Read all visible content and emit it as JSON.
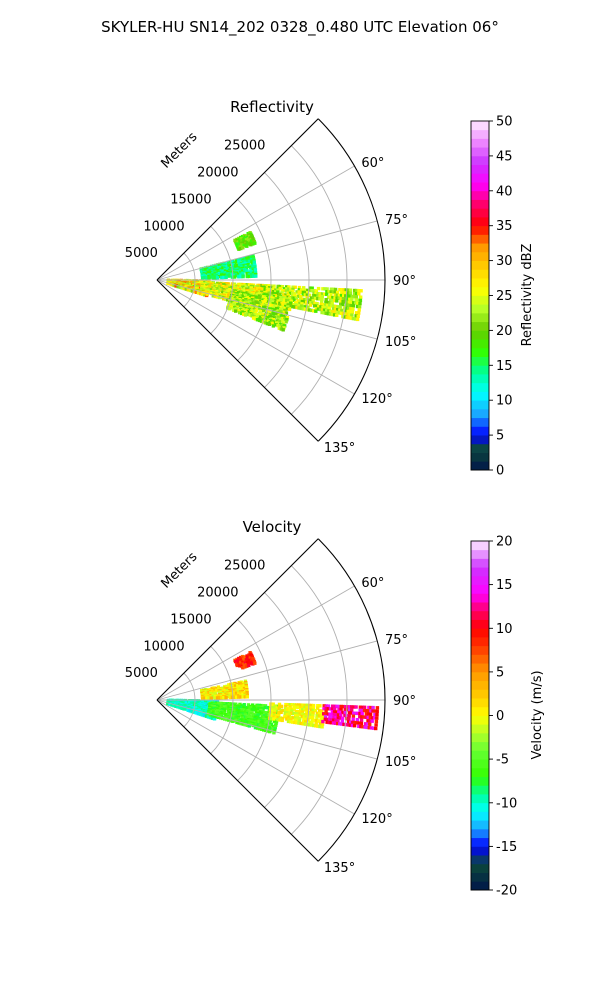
{
  "figure_title": "SKYLER-HU  SN14_202  0328_0.480 UTC Elevation 06°",
  "colors": {
    "grid": "#b0b0b0",
    "reflectivity_stops": [
      [
        0,
        "#00154a"
      ],
      [
        3,
        "#0c4a3a"
      ],
      [
        5,
        "#0000ff"
      ],
      [
        8,
        "#1aa5ff"
      ],
      [
        11,
        "#00ffff"
      ],
      [
        14,
        "#00ff99"
      ],
      [
        17,
        "#33ff00"
      ],
      [
        20,
        "#66cc00"
      ],
      [
        23,
        "#b4ff28"
      ],
      [
        26,
        "#ffff00"
      ],
      [
        29,
        "#ffd000"
      ],
      [
        32,
        "#ff9900"
      ],
      [
        35,
        "#ff0000"
      ],
      [
        38,
        "#ff0066"
      ],
      [
        41,
        "#ff00ff"
      ],
      [
        44,
        "#cc33ff"
      ],
      [
        47,
        "#ee88ff"
      ],
      [
        50,
        "#ffeeff"
      ]
    ],
    "velocity_stops": [
      [
        -20,
        "#00154a"
      ],
      [
        -17,
        "#0c4a3a"
      ],
      [
        -15,
        "#0000ff"
      ],
      [
        -13,
        "#1aa5ff"
      ],
      [
        -11,
        "#00ffff"
      ],
      [
        -9,
        "#00ff99"
      ],
      [
        -7,
        "#33ff00"
      ],
      [
        -4,
        "#66ff33"
      ],
      [
        -2,
        "#b4ff28"
      ],
      [
        0,
        "#ffff00"
      ],
      [
        2,
        "#ffd000"
      ],
      [
        5,
        "#ff9900"
      ],
      [
        8,
        "#ff3300"
      ],
      [
        10,
        "#ff0000"
      ],
      [
        12,
        "#ff0066"
      ],
      [
        14,
        "#ff00ff"
      ],
      [
        17,
        "#cc33ff"
      ],
      [
        20,
        "#ffeeff"
      ]
    ]
  },
  "chart_data": [
    {
      "type": "heatmap",
      "projection": "polar-sector",
      "title": "Reflectivity",
      "radial_label": "Meters",
      "theta_range_deg": [
        45,
        135
      ],
      "theta_ticks": [
        "60°",
        "75°",
        "90°",
        "105°",
        "120°",
        "135°"
      ],
      "theta_tick_values": [
        60,
        75,
        90,
        105,
        120,
        135
      ],
      "radial_range_m": [
        0,
        30000
      ],
      "radial_ticks": [
        "5000",
        "10000",
        "15000",
        "20000",
        "25000"
      ],
      "radial_tick_values": [
        5000,
        10000,
        15000,
        20000,
        25000
      ],
      "grid": true,
      "colorbar": {
        "label": "Reflectivity dBZ",
        "range": [
          0,
          50
        ],
        "ticks": [
          "0",
          "5",
          "10",
          "15",
          "20",
          "25",
          "30",
          "35",
          "40",
          "45",
          "50"
        ],
        "tick_values": [
          0,
          5,
          10,
          15,
          20,
          25,
          30,
          35,
          40,
          45,
          50
        ]
      },
      "echo_regions": [
        {
          "az": [
            91,
            108
          ],
          "range_m": [
            1500,
            7000
          ],
          "value": [
            20,
            34
          ]
        },
        {
          "az": [
            93,
            106
          ],
          "range_m": [
            6000,
            15000
          ],
          "value": [
            20,
            30
          ]
        },
        {
          "az": [
            93,
            102
          ],
          "range_m": [
            14000,
            27000
          ],
          "value": [
            18,
            28
          ]
        },
        {
          "az": [
            98,
            112
          ],
          "range_m": [
            10000,
            18000
          ],
          "value": [
            18,
            27
          ]
        },
        {
          "az": [
            76,
            88
          ],
          "range_m": [
            6000,
            13000
          ],
          "value": [
            12,
            18
          ]
        },
        {
          "az": [
            63,
            70
          ],
          "range_m": [
            11500,
            14000
          ],
          "value": [
            16,
            22
          ]
        }
      ]
    },
    {
      "type": "heatmap",
      "projection": "polar-sector",
      "title": "Velocity",
      "radial_label": "Meters",
      "theta_range_deg": [
        45,
        135
      ],
      "theta_ticks": [
        "60°",
        "75°",
        "90°",
        "105°",
        "120°",
        "135°"
      ],
      "theta_tick_values": [
        60,
        75,
        90,
        105,
        120,
        135
      ],
      "radial_range_m": [
        0,
        30000
      ],
      "radial_ticks": [
        "5000",
        "10000",
        "15000",
        "20000",
        "25000"
      ],
      "radial_tick_values": [
        5000,
        10000,
        15000,
        20000,
        25000
      ],
      "grid": true,
      "colorbar": {
        "label": "Velocity (m/s)",
        "range": [
          -20,
          20
        ],
        "ticks": [
          "-20",
          "-15",
          "-10",
          "-5",
          "0",
          "5",
          "10",
          "15",
          "20"
        ],
        "tick_values": [
          -20,
          -15,
          -10,
          -5,
          0,
          5,
          10,
          15,
          20
        ]
      },
      "echo_regions": [
        {
          "az": [
            91,
            109
          ],
          "range_m": [
            1500,
            8000
          ],
          "value": [
            -12,
            -8
          ]
        },
        {
          "az": [
            93,
            106
          ],
          "range_m": [
            7000,
            16000
          ],
          "value": [
            -8,
            -4
          ]
        },
        {
          "az": [
            92,
            100
          ],
          "range_m": [
            15000,
            22000
          ],
          "value": [
            -2,
            2
          ]
        },
        {
          "az": [
            92,
            98
          ],
          "range_m": [
            22000,
            29000
          ],
          "value": [
            8,
            16
          ]
        },
        {
          "az": [
            78,
            88
          ],
          "range_m": [
            6000,
            12000
          ],
          "value": [
            -2,
            4
          ]
        },
        {
          "az": [
            63,
            70
          ],
          "range_m": [
            11500,
            14000
          ],
          "value": [
            6,
            11
          ]
        }
      ]
    }
  ]
}
